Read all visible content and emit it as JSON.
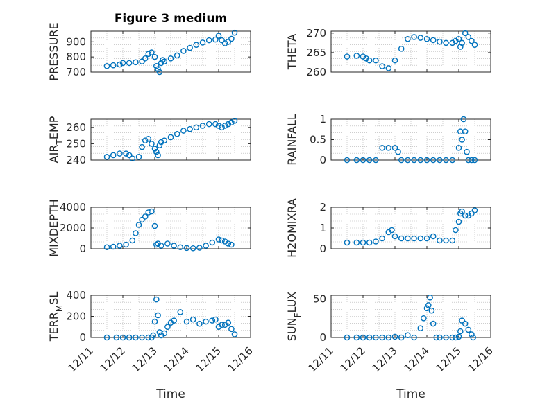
{
  "chart_data": [
    {
      "type": "scatter",
      "title": "Figure 3 medium",
      "ylabel": "PRESSURE",
      "xlabel": "",
      "xlim": [
        0,
        5
      ],
      "ylim": [
        700,
        970
      ],
      "yticks": [
        700,
        800,
        900
      ],
      "grid": true,
      "marker": "o",
      "x": [
        0.5,
        0.7,
        0.9,
        1.0,
        1.2,
        1.4,
        1.6,
        1.7,
        1.8,
        1.9,
        2.0,
        2.05,
        2.1,
        2.15,
        2.2,
        2.25,
        2.3,
        2.5,
        2.7,
        2.9,
        3.1,
        3.3,
        3.5,
        3.7,
        3.9,
        4.0,
        4.1,
        4.2,
        4.3,
        4.4,
        4.5
      ],
      "y": [
        740,
        745,
        750,
        760,
        760,
        765,
        770,
        790,
        820,
        830,
        800,
        740,
        720,
        700,
        760,
        780,
        770,
        790,
        810,
        840,
        860,
        880,
        895,
        910,
        915,
        940,
        910,
        890,
        900,
        920,
        960
      ]
    },
    {
      "type": "scatter",
      "title": "",
      "ylabel": "THETA",
      "xlabel": "",
      "xlim": [
        0,
        5
      ],
      "ylim": [
        260,
        270.5
      ],
      "yticks": [
        260,
        265,
        270
      ],
      "grid": true,
      "marker": "o",
      "x": [
        0.5,
        0.8,
        1.0,
        1.1,
        1.2,
        1.4,
        1.6,
        1.8,
        2.0,
        2.2,
        2.4,
        2.6,
        2.8,
        3.0,
        3.2,
        3.4,
        3.6,
        3.8,
        3.9,
        4.0,
        4.05,
        4.1,
        4.2,
        4.3,
        4.4,
        4.5
      ],
      "y": [
        264,
        264.2,
        264,
        263.5,
        263,
        263,
        261.5,
        261,
        263,
        266,
        268.5,
        269,
        268.8,
        268.5,
        268.2,
        267.8,
        267.5,
        267.5,
        268,
        268.5,
        266.5,
        267.5,
        270,
        269,
        268,
        267
      ]
    },
    {
      "type": "scatter",
      "title": "",
      "ylabel": "AIR_TEMP",
      "xlabel": "",
      "xlim": [
        0,
        5
      ],
      "ylim": [
        240,
        265
      ],
      "yticks": [
        240,
        250,
        260
      ],
      "grid": true,
      "marker": "o",
      "x": [
        0.5,
        0.7,
        0.9,
        1.1,
        1.2,
        1.3,
        1.5,
        1.6,
        1.7,
        1.8,
        1.9,
        2.0,
        2.05,
        2.1,
        2.15,
        2.2,
        2.3,
        2.5,
        2.7,
        2.9,
        3.1,
        3.3,
        3.5,
        3.7,
        3.9,
        4.0,
        4.1,
        4.2,
        4.3,
        4.4,
        4.5
      ],
      "y": [
        242,
        243,
        244,
        244,
        243,
        241,
        242,
        248,
        252,
        253,
        250,
        247,
        245,
        243,
        249,
        251,
        252,
        254,
        256,
        258,
        259,
        260,
        261,
        262,
        262,
        261,
        260,
        261,
        262,
        263,
        264
      ]
    },
    {
      "type": "scatter",
      "title": "",
      "ylabel": "RAINFALL",
      "xlabel": "",
      "xlim": [
        0,
        5
      ],
      "ylim": [
        0,
        1
      ],
      "yticks": [
        0,
        0.5,
        1
      ],
      "grid": true,
      "marker": "o",
      "x": [
        0.5,
        0.8,
        1.0,
        1.2,
        1.4,
        1.6,
        1.8,
        2.0,
        2.1,
        2.2,
        2.4,
        2.6,
        2.8,
        3.0,
        3.2,
        3.4,
        3.6,
        3.8,
        4.0,
        4.05,
        4.1,
        4.15,
        4.2,
        4.25,
        4.3,
        4.4,
        4.5
      ],
      "y": [
        0,
        0,
        0,
        0,
        0,
        0.3,
        0.3,
        0.3,
        0.2,
        0,
        0,
        0,
        0,
        0,
        0,
        0,
        0,
        0,
        0.3,
        0.7,
        0.5,
        1.0,
        0.7,
        0.2,
        0,
        0,
        0
      ]
    },
    {
      "type": "scatter",
      "title": "",
      "ylabel": "MIXDEPTH",
      "xlabel": "",
      "xlim": [
        0,
        5
      ],
      "ylim": [
        0,
        4000
      ],
      "yticks": [
        0,
        2000,
        4000
      ],
      "grid": true,
      "marker": "o",
      "x": [
        0.5,
        0.7,
        0.9,
        1.1,
        1.3,
        1.4,
        1.5,
        1.6,
        1.7,
        1.8,
        1.9,
        2.0,
        2.05,
        2.1,
        2.2,
        2.4,
        2.6,
        2.8,
        3.0,
        3.2,
        3.4,
        3.6,
        3.8,
        4.0,
        4.1,
        4.2,
        4.3,
        4.4
      ],
      "y": [
        150,
        200,
        300,
        400,
        800,
        1500,
        2300,
        2800,
        3100,
        3500,
        3600,
        2200,
        400,
        500,
        300,
        500,
        300,
        150,
        80,
        50,
        100,
        300,
        600,
        900,
        800,
        700,
        500,
        400
      ]
    },
    {
      "type": "scatter",
      "title": "",
      "ylabel": "H2OMIXRA",
      "xlabel": "",
      "xlim": [
        0,
        5
      ],
      "ylim": [
        0,
        2
      ],
      "yticks": [
        0,
        1,
        2
      ],
      "grid": true,
      "marker": "o",
      "x": [
        0.5,
        0.8,
        1.0,
        1.2,
        1.4,
        1.6,
        1.8,
        1.9,
        2.0,
        2.2,
        2.4,
        2.6,
        2.8,
        3.0,
        3.2,
        3.4,
        3.6,
        3.8,
        3.9,
        4.0,
        4.05,
        4.1,
        4.2,
        4.3,
        4.4,
        4.5
      ],
      "y": [
        0.3,
        0.3,
        0.3,
        0.3,
        0.35,
        0.5,
        0.8,
        0.9,
        0.6,
        0.5,
        0.5,
        0.5,
        0.5,
        0.5,
        0.6,
        0.4,
        0.4,
        0.4,
        0.9,
        1.3,
        1.7,
        1.8,
        1.6,
        1.6,
        1.7,
        1.85
      ]
    },
    {
      "type": "scatter",
      "title": "",
      "ylabel": "TERR_MSL",
      "xlabel": "Time",
      "xlim": [
        0,
        5
      ],
      "ylim": [
        0,
        400
      ],
      "yticks": [
        0,
        200,
        400
      ],
      "xticklabels": [
        "12/11",
        "12/12",
        "12/13",
        "12/14",
        "12/15",
        "12/16"
      ],
      "grid": true,
      "marker": "o",
      "x": [
        0.5,
        0.8,
        1.0,
        1.2,
        1.4,
        1.6,
        1.8,
        1.9,
        1.95,
        2.0,
        2.05,
        2.1,
        2.15,
        2.2,
        2.3,
        2.4,
        2.5,
        2.6,
        2.8,
        3.0,
        3.2,
        3.4,
        3.6,
        3.8,
        3.9,
        4.0,
        4.1,
        4.2,
        4.3,
        4.4,
        4.5
      ],
      "y": [
        0,
        0,
        0,
        0,
        0,
        0,
        0,
        0,
        20,
        150,
        360,
        210,
        50,
        20,
        40,
        100,
        140,
        160,
        240,
        150,
        170,
        130,
        150,
        160,
        170,
        100,
        120,
        120,
        140,
        80,
        30
      ]
    },
    {
      "type": "scatter",
      "title": "",
      "ylabel": "SUN_FLUX",
      "xlabel": "Time",
      "xlim": [
        0,
        5
      ],
      "ylim": [
        0,
        55
      ],
      "yticks": [
        0,
        50
      ],
      "xticklabels": [
        "12/11",
        "12/12",
        "12/13",
        "12/14",
        "12/15",
        "12/16"
      ],
      "grid": true,
      "marker": "o",
      "x": [
        0.5,
        0.8,
        1.0,
        1.2,
        1.4,
        1.6,
        1.8,
        2.0,
        2.2,
        2.4,
        2.6,
        2.8,
        2.9,
        3.0,
        3.05,
        3.1,
        3.15,
        3.2,
        3.3,
        3.4,
        3.6,
        3.8,
        3.9,
        4.0,
        4.05,
        4.1,
        4.2,
        4.3,
        4.4,
        4.45
      ],
      "y": [
        0,
        0,
        0,
        0,
        0,
        0,
        0,
        1,
        0,
        3,
        0,
        12,
        25,
        38,
        42,
        52,
        35,
        18,
        0,
        0,
        0,
        0,
        0,
        1,
        8,
        22,
        18,
        10,
        4,
        0
      ]
    }
  ],
  "colors": {
    "marker": "#0072BD",
    "axes": "#262626",
    "grid": "#b0b0b0"
  }
}
